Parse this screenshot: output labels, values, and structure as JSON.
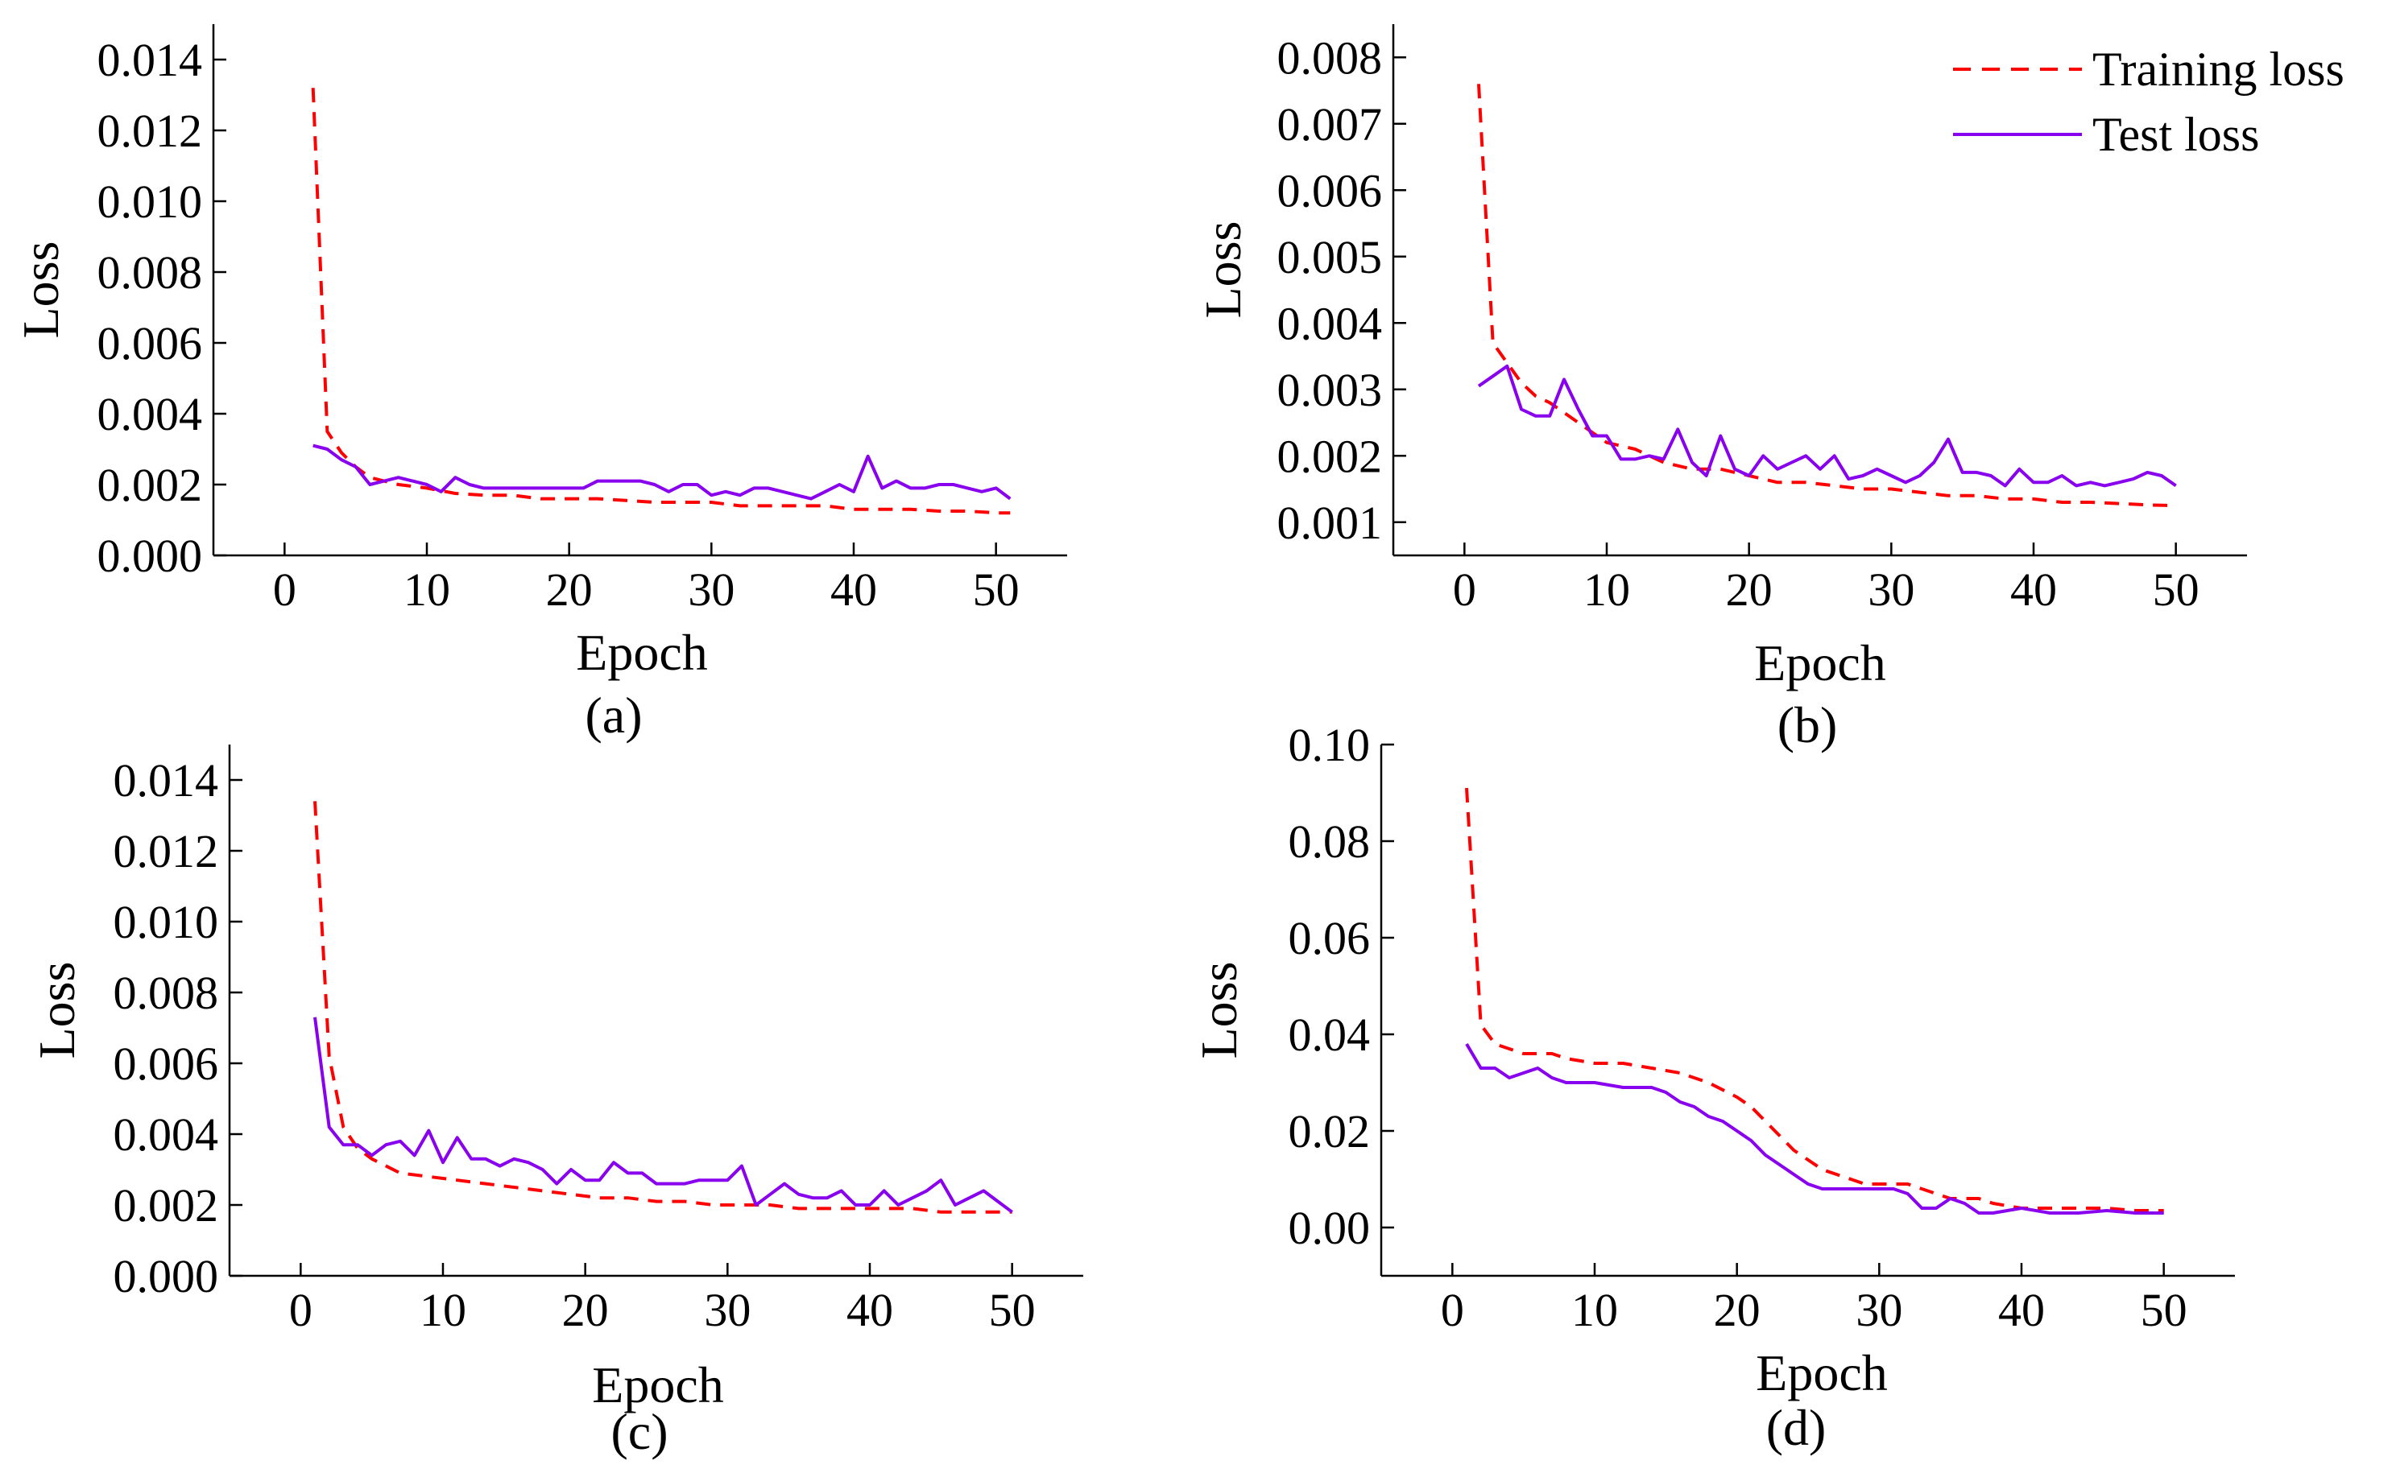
{
  "legend": {
    "training_label": "Training loss",
    "test_label": "Test loss",
    "training_color": "#ff0000",
    "test_color": "#8800ee"
  },
  "chart_data": [
    {
      "type": "line",
      "caption": "(a)",
      "xlabel": "Epoch",
      "ylabel": "Loss",
      "xlim": [
        -5,
        55
      ],
      "ylim": [
        0,
        0.015
      ],
      "xticks": [
        0,
        10,
        20,
        30,
        40,
        50
      ],
      "xtick_labels": [
        "0",
        "10",
        "20",
        "30",
        "40",
        "50"
      ],
      "yticks": [
        0,
        0.002,
        0.004,
        0.006,
        0.008,
        0.01,
        0.012,
        0.014
      ],
      "ytick_labels": [
        "0.000",
        "0.002",
        "0.004",
        "0.006",
        "0.008",
        "0.010",
        "0.012",
        "0.014"
      ],
      "series": [
        {
          "name": "Training loss",
          "style": "dashed",
          "color": "#ff0000",
          "x": [
            2,
            3,
            4,
            5,
            6,
            8,
            10,
            12,
            14,
            16,
            18,
            20,
            22,
            24,
            26,
            28,
            30,
            32,
            34,
            36,
            38,
            40,
            42,
            44,
            46,
            48,
            50,
            51
          ],
          "values": [
            0.0132,
            0.0035,
            0.0029,
            0.0025,
            0.0022,
            0.002,
            0.0019,
            0.00175,
            0.0017,
            0.0017,
            0.0016,
            0.0016,
            0.0016,
            0.00155,
            0.0015,
            0.0015,
            0.0015,
            0.0014,
            0.0014,
            0.0014,
            0.0014,
            0.0013,
            0.0013,
            0.0013,
            0.00125,
            0.00125,
            0.0012,
            0.0012
          ]
        },
        {
          "name": "Test loss",
          "style": "solid",
          "color": "#8800ee",
          "x": [
            2,
            3,
            4,
            5,
            6,
            7,
            8,
            9,
            10,
            11,
            12,
            13,
            14,
            15,
            16,
            17,
            18,
            19,
            20,
            21,
            22,
            23,
            24,
            25,
            26,
            27,
            28,
            29,
            30,
            31,
            32,
            33,
            34,
            35,
            36,
            37,
            38,
            39,
            40,
            41,
            42,
            43,
            44,
            45,
            46,
            47,
            48,
            49,
            50,
            51
          ],
          "values": [
            0.0031,
            0.003,
            0.0027,
            0.0025,
            0.002,
            0.0021,
            0.0022,
            0.0021,
            0.002,
            0.0018,
            0.0022,
            0.002,
            0.0019,
            0.0019,
            0.0019,
            0.0019,
            0.0019,
            0.0019,
            0.0019,
            0.0019,
            0.0021,
            0.0021,
            0.0021,
            0.0021,
            0.002,
            0.0018,
            0.002,
            0.002,
            0.0017,
            0.0018,
            0.0017,
            0.0019,
            0.0019,
            0.0018,
            0.0017,
            0.0016,
            0.0018,
            0.002,
            0.0018,
            0.0028,
            0.0019,
            0.0021,
            0.0019,
            0.0019,
            0.002,
            0.002,
            0.0019,
            0.0018,
            0.0019,
            0.0016
          ]
        }
      ]
    },
    {
      "type": "line",
      "caption": "(b)",
      "xlabel": "Epoch",
      "ylabel": "Loss",
      "xlim": [
        -5,
        55
      ],
      "ylim": [
        0.0005,
        0.0085
      ],
      "xticks": [
        0,
        10,
        20,
        30,
        40,
        50
      ],
      "xtick_labels": [
        "0",
        "10",
        "20",
        "30",
        "40",
        "50"
      ],
      "yticks": [
        0.001,
        0.002,
        0.003,
        0.004,
        0.005,
        0.006,
        0.007,
        0.008
      ],
      "ytick_labels": [
        "0.001",
        "0.002",
        "0.003",
        "0.004",
        "0.005",
        "0.006",
        "0.007",
        "0.008"
      ],
      "series": [
        {
          "name": "Training loss",
          "style": "dashed",
          "color": "#ff0000",
          "x": [
            1,
            2,
            3,
            4,
            5,
            6,
            8,
            10,
            12,
            14,
            16,
            18,
            20,
            22,
            24,
            26,
            28,
            30,
            32,
            34,
            36,
            38,
            40,
            42,
            44,
            46,
            48,
            50
          ],
          "values": [
            0.0076,
            0.0037,
            0.0034,
            0.0031,
            0.0029,
            0.0028,
            0.0025,
            0.0022,
            0.0021,
            0.0019,
            0.0018,
            0.0018,
            0.0017,
            0.0016,
            0.0016,
            0.00155,
            0.0015,
            0.0015,
            0.00145,
            0.0014,
            0.0014,
            0.00135,
            0.00135,
            0.0013,
            0.0013,
            0.00128,
            0.00126,
            0.00125
          ]
        },
        {
          "name": "Test loss",
          "style": "solid",
          "color": "#8800ee",
          "x": [
            1,
            2,
            3,
            4,
            5,
            6,
            7,
            8,
            9,
            10,
            11,
            12,
            13,
            14,
            15,
            16,
            17,
            18,
            19,
            20,
            21,
            22,
            23,
            24,
            25,
            26,
            27,
            28,
            29,
            30,
            31,
            32,
            33,
            34,
            35,
            36,
            37,
            38,
            39,
            40,
            41,
            42,
            43,
            44,
            45,
            46,
            47,
            48,
            49,
            50
          ],
          "values": [
            0.00305,
            0.0032,
            0.00335,
            0.0027,
            0.0026,
            0.0026,
            0.00315,
            0.0027,
            0.0023,
            0.0023,
            0.00195,
            0.00195,
            0.002,
            0.00195,
            0.0024,
            0.0019,
            0.0017,
            0.0023,
            0.0018,
            0.0017,
            0.002,
            0.0018,
            0.0019,
            0.002,
            0.0018,
            0.002,
            0.00165,
            0.0017,
            0.0018,
            0.0017,
            0.0016,
            0.0017,
            0.0019,
            0.00225,
            0.00175,
            0.00175,
            0.0017,
            0.00155,
            0.0018,
            0.0016,
            0.0016,
            0.0017,
            0.00155,
            0.0016,
            0.00155,
            0.0016,
            0.00165,
            0.00175,
            0.0017,
            0.00155
          ]
        }
      ]
    },
    {
      "type": "line",
      "caption": "(c)",
      "xlabel": "Epoch",
      "ylabel": "Loss",
      "xlim": [
        -5,
        55
      ],
      "ylim": [
        0,
        0.015
      ],
      "xticks": [
        0,
        10,
        20,
        30,
        40,
        50
      ],
      "xtick_labels": [
        "0",
        "10",
        "20",
        "30",
        "40",
        "50"
      ],
      "yticks": [
        0,
        0.002,
        0.004,
        0.006,
        0.008,
        0.01,
        0.012,
        0.014
      ],
      "ytick_labels": [
        "0.000",
        "0.002",
        "0.004",
        "0.006",
        "0.008",
        "0.010",
        "0.012",
        "0.014"
      ],
      "series": [
        {
          "name": "Training loss",
          "style": "dashed",
          "color": "#ff0000",
          "x": [
            1,
            2,
            3,
            4,
            5,
            7,
            9,
            11,
            13,
            15,
            17,
            19,
            21,
            23,
            25,
            27,
            29,
            31,
            33,
            35,
            37,
            39,
            41,
            43,
            45,
            47,
            49,
            50
          ],
          "values": [
            0.0134,
            0.0062,
            0.0042,
            0.0036,
            0.0033,
            0.0029,
            0.0028,
            0.0027,
            0.0026,
            0.0025,
            0.0024,
            0.0023,
            0.0022,
            0.0022,
            0.0021,
            0.0021,
            0.002,
            0.002,
            0.002,
            0.0019,
            0.0019,
            0.0019,
            0.0019,
            0.0019,
            0.0018,
            0.0018,
            0.0018,
            0.0018
          ]
        },
        {
          "name": "Test loss",
          "style": "solid",
          "color": "#8800ee",
          "x": [
            1,
            2,
            3,
            4,
            5,
            6,
            7,
            8,
            9,
            10,
            11,
            12,
            13,
            14,
            15,
            16,
            17,
            18,
            19,
            20,
            21,
            22,
            23,
            24,
            25,
            26,
            27,
            28,
            29,
            30,
            31,
            32,
            33,
            34,
            35,
            36,
            37,
            38,
            39,
            40,
            41,
            42,
            43,
            44,
            45,
            46,
            47,
            48,
            49,
            50
          ],
          "values": [
            0.0073,
            0.0042,
            0.0037,
            0.0037,
            0.0034,
            0.0037,
            0.0038,
            0.0034,
            0.0041,
            0.0032,
            0.0039,
            0.0033,
            0.0033,
            0.0031,
            0.0033,
            0.0032,
            0.003,
            0.0026,
            0.003,
            0.0027,
            0.0027,
            0.0032,
            0.0029,
            0.0029,
            0.0026,
            0.0026,
            0.0026,
            0.0027,
            0.0027,
            0.0027,
            0.0031,
            0.002,
            0.0023,
            0.0026,
            0.0023,
            0.0022,
            0.0022,
            0.0024,
            0.002,
            0.002,
            0.0024,
            0.002,
            0.0022,
            0.0024,
            0.0027,
            0.002,
            0.0022,
            0.0024,
            0.0021,
            0.0018
          ]
        }
      ]
    },
    {
      "type": "line",
      "caption": "(d)",
      "xlabel": "Epoch",
      "ylabel": "Loss",
      "xlim": [
        -5,
        55
      ],
      "ylim": [
        -0.01,
        0.1
      ],
      "xticks": [
        0,
        10,
        20,
        30,
        40,
        50
      ],
      "xtick_labels": [
        "0",
        "10",
        "20",
        "30",
        "40",
        "50"
      ],
      "yticks": [
        0,
        0.02,
        0.04,
        0.06,
        0.08,
        0.1
      ],
      "ytick_labels": [
        "0.00",
        "0.02",
        "0.04",
        "0.06",
        "0.08",
        "0.10"
      ],
      "series": [
        {
          "name": "Training loss",
          "style": "dashed",
          "color": "#ff0000",
          "x": [
            1,
            2,
            3,
            4,
            5,
            6,
            7,
            8,
            10,
            12,
            14,
            16,
            18,
            20,
            21,
            22,
            23,
            24,
            25,
            26,
            27,
            28,
            29,
            30,
            31,
            32,
            33,
            34,
            35,
            36,
            37,
            38,
            40,
            42,
            44,
            46,
            48,
            50
          ],
          "values": [
            0.091,
            0.042,
            0.038,
            0.037,
            0.036,
            0.036,
            0.036,
            0.035,
            0.034,
            0.034,
            0.033,
            0.032,
            0.03,
            0.027,
            0.025,
            0.022,
            0.019,
            0.016,
            0.014,
            0.012,
            0.011,
            0.01,
            0.009,
            0.009,
            0.009,
            0.009,
            0.008,
            0.007,
            0.006,
            0.006,
            0.006,
            0.005,
            0.004,
            0.004,
            0.004,
            0.004,
            0.0035,
            0.0035
          ]
        },
        {
          "name": "Test loss",
          "style": "solid",
          "color": "#8800ee",
          "x": [
            1,
            2,
            3,
            4,
            5,
            6,
            7,
            8,
            10,
            12,
            14,
            15,
            16,
            17,
            18,
            19,
            20,
            21,
            22,
            23,
            24,
            25,
            26,
            27,
            28,
            29,
            30,
            31,
            32,
            33,
            34,
            35,
            36,
            37,
            38,
            40,
            42,
            44,
            46,
            48,
            50
          ],
          "values": [
            0.038,
            0.033,
            0.033,
            0.031,
            0.032,
            0.033,
            0.031,
            0.03,
            0.03,
            0.029,
            0.029,
            0.028,
            0.026,
            0.025,
            0.023,
            0.022,
            0.02,
            0.018,
            0.015,
            0.013,
            0.011,
            0.009,
            0.008,
            0.008,
            0.008,
            0.008,
            0.008,
            0.008,
            0.007,
            0.004,
            0.004,
            0.006,
            0.005,
            0.003,
            0.003,
            0.004,
            0.003,
            0.003,
            0.0035,
            0.003,
            0.003
          ]
        }
      ]
    }
  ]
}
